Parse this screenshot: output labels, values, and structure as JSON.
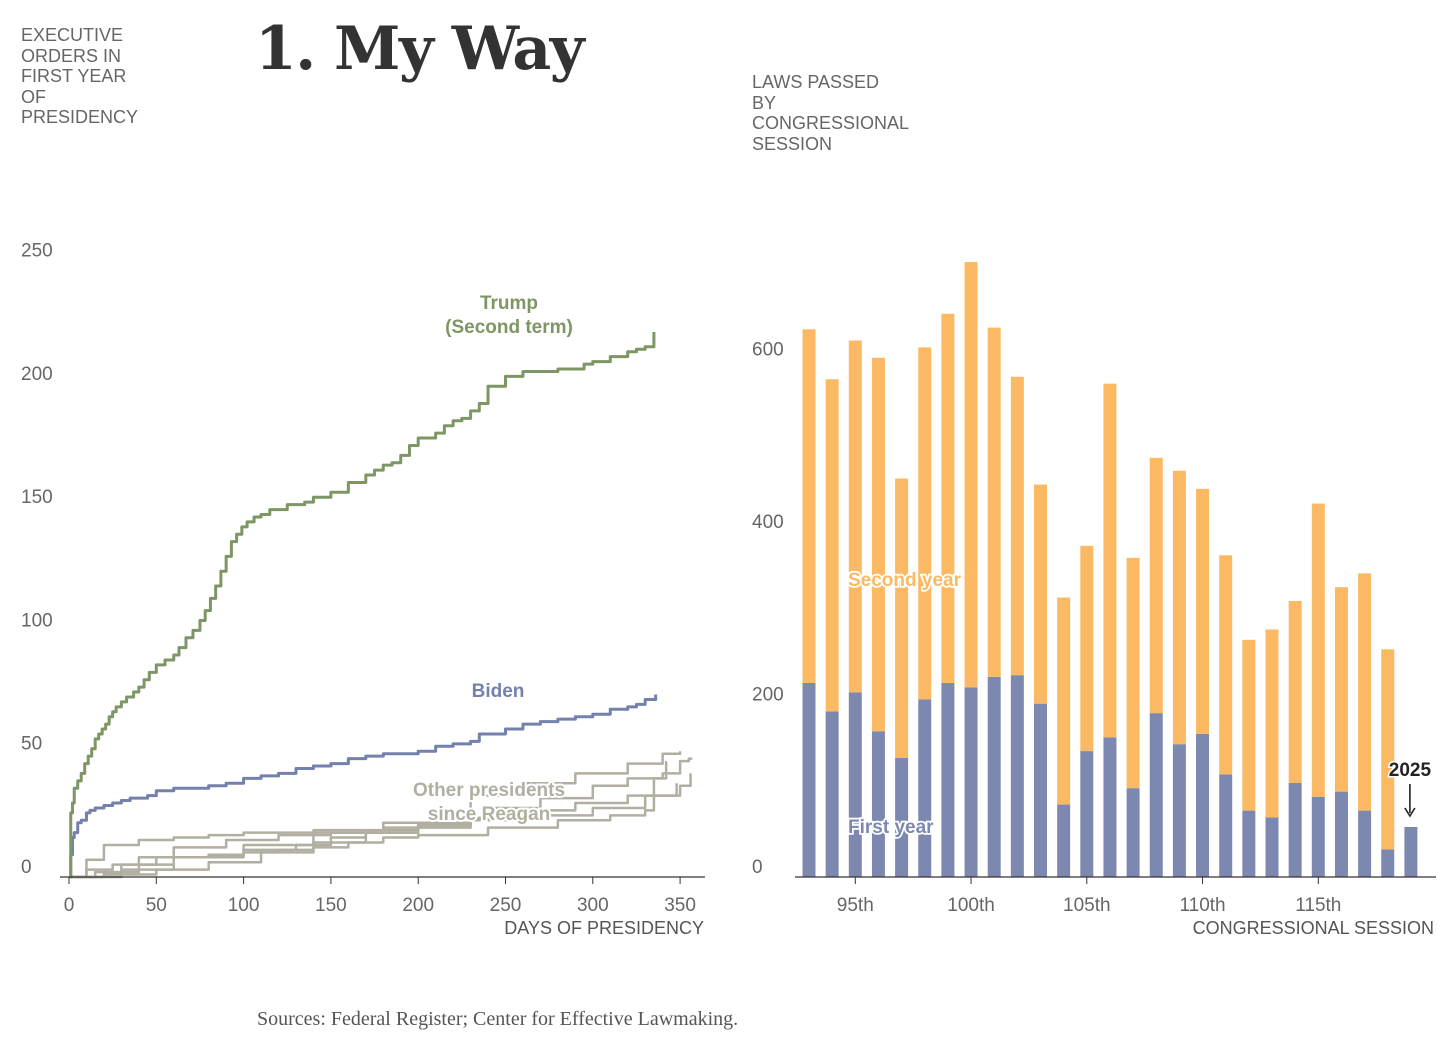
{
  "title": "1. My Way",
  "left_axis_title": [
    "EXECUTIVE",
    "ORDERS IN",
    "FIRST YEAR",
    "OF",
    "PRESIDENCY"
  ],
  "right_axis_title": [
    "LAWS PASSED",
    "BY",
    "CONGRESSIONAL",
    "SESSION"
  ],
  "sources": "Sources: Federal Register; Center for Effective Lawmaking.",
  "colors": {
    "trump": "#7d9663",
    "biden": "#7381ac",
    "others": "#b2aea1",
    "first_year": "#7d88b0",
    "second_year": "#fcb964",
    "axis": "#333333"
  },
  "chart_data": [
    {
      "type": "line",
      "title": "",
      "ylabel": "EXECUTIVE ORDERS IN FIRST YEAR OF PRESIDENCY",
      "xlabel": "DAYS OF PRESIDENCY",
      "xlim": [
        0,
        365
      ],
      "ylim": [
        0,
        255
      ],
      "xticks": [
        "0",
        "50",
        "100",
        "150",
        "200",
        "250",
        "300",
        "350"
      ],
      "yticks": [
        "0",
        "50",
        "100",
        "150",
        "200",
        "250"
      ],
      "series": [
        {
          "name": "Trump (Second term)",
          "label_lines": [
            "Trump",
            "(Second term)"
          ],
          "color_key": "trump",
          "x": [
            0,
            1,
            2,
            3,
            5,
            7,
            9,
            11,
            13,
            15,
            17,
            19,
            21,
            23,
            25,
            27,
            30,
            33,
            37,
            40,
            43,
            46,
            50,
            55,
            60,
            63,
            67,
            71,
            75,
            78,
            81,
            84,
            87,
            90,
            93,
            96,
            99,
            102,
            106,
            110,
            115,
            120,
            125,
            130,
            135,
            140,
            145,
            150,
            160,
            170,
            175,
            180,
            185,
            190,
            195,
            200,
            210,
            215,
            220,
            225,
            230,
            235,
            240,
            250,
            260,
            270,
            280,
            290,
            295,
            300,
            310,
            320,
            325,
            330,
            335
          ],
          "values": [
            0,
            26,
            30,
            36,
            39,
            42,
            46,
            49,
            52,
            56,
            58,
            60,
            62,
            65,
            67,
            69,
            71,
            73,
            75,
            77,
            80,
            83,
            86,
            88,
            90,
            93,
            97,
            100,
            104,
            108,
            113,
            118,
            124,
            130,
            136,
            139,
            142,
            144,
            146,
            147,
            149,
            149,
            151,
            151,
            152,
            154,
            154,
            156,
            160,
            163,
            165,
            167,
            168,
            171,
            175,
            178,
            180,
            183,
            185,
            186,
            189,
            192,
            199,
            203,
            205,
            205,
            206,
            206,
            208,
            209,
            211,
            213,
            214,
            215,
            221
          ]
        },
        {
          "name": "Biden",
          "label_lines": [
            "Biden"
          ],
          "color_key": "biden",
          "x": [
            0,
            1,
            2,
            3,
            5,
            7,
            10,
            12,
            15,
            20,
            25,
            30,
            35,
            40,
            45,
            50,
            60,
            70,
            80,
            90,
            100,
            110,
            120,
            130,
            140,
            150,
            160,
            170,
            180,
            190,
            200,
            210,
            220,
            230,
            235,
            240,
            250,
            260,
            270,
            280,
            290,
            300,
            310,
            320,
            325,
            330,
            336
          ],
          "values": [
            0,
            9,
            16,
            18,
            22,
            23,
            26,
            27,
            28,
            29,
            30,
            31,
            32,
            32,
            33,
            35,
            36,
            36,
            37,
            38,
            40,
            41,
            42,
            44,
            45,
            46,
            48,
            49,
            50,
            50,
            51,
            53,
            54,
            55,
            58,
            58,
            60,
            62,
            63,
            64,
            65,
            66,
            68,
            69,
            70,
            72,
            74
          ]
        },
        {
          "name": "Other presidents since Reagan",
          "label_lines": [
            "Other presidents",
            "since Reagan"
          ],
          "color_key": "others",
          "lines": [
            {
              "x": [
                0,
                10,
                20,
                40,
                60,
                80,
                100,
                120,
                140,
                160,
                180,
                200,
                207
              ],
              "values": [
                0,
                7,
                13,
                15,
                16,
                17,
                18,
                18,
                19,
                19,
                20,
                21,
                22
              ]
            },
            {
              "x": [
                0,
                15,
                30,
                50,
                80,
                100,
                130,
                150,
                170,
                200,
                230,
                260,
                300,
                330,
                348
              ],
              "values": [
                0,
                2,
                5,
                8,
                9,
                11,
                13,
                16,
                18,
                20,
                23,
                25,
                28,
                33,
                38
              ]
            },
            {
              "x": [
                0,
                10,
                25,
                40,
                60,
                90,
                120,
                150,
                180,
                200,
                230,
                260,
                290,
                320,
                340,
                350
              ],
              "values": [
                0,
                3,
                5,
                8,
                12,
                15,
                17,
                18,
                19,
                22,
                33,
                38,
                42,
                46,
                50,
                51
              ]
            },
            {
              "x": [
                0,
                20,
                40,
                60,
                80,
                100,
                120,
                140,
                160,
                180,
                200,
                240,
                280,
                310,
                330,
                335,
                342
              ],
              "values": [
                0,
                2,
                5,
                8,
                9,
                10,
                11,
                12,
                14,
                16,
                17,
                20,
                23,
                25,
                27,
                40,
                47
              ]
            },
            {
              "x": [
                0,
                30,
                60,
                100,
                140,
                180,
                210,
                240,
                270,
                300,
                320,
                340,
                350,
                355,
                357
              ],
              "values": [
                0,
                3,
                8,
                13,
                18,
                22,
                24,
                28,
                32,
                37,
                40,
                42,
                47,
                48,
                48
              ]
            },
            {
              "x": [
                0,
                20,
                50,
                80,
                110,
                140,
                170,
                200,
                230,
                260,
                290,
                320,
                350,
                356
              ],
              "values": [
                0,
                1,
                3,
                6,
                10,
                14,
                18,
                21,
                24,
                27,
                30,
                33,
                37,
                42
              ]
            }
          ]
        }
      ]
    },
    {
      "type": "bar",
      "title": "",
      "ylabel": "LAWS PASSED BY CONGRESSIONAL SESSION",
      "xlabel": "CONGRESSIONAL SESSION",
      "ylim": [
        0,
        720
      ],
      "yticks": [
        "0",
        "200",
        "400",
        "600"
      ],
      "xticks": [
        "95th",
        "100th",
        "105th",
        "110th",
        "115th"
      ],
      "categories": [
        93,
        94,
        95,
        96,
        97,
        98,
        99,
        100,
        101,
        102,
        103,
        104,
        105,
        106,
        107,
        108,
        109,
        110,
        111,
        112,
        113,
        114,
        115,
        116,
        117,
        118,
        119
      ],
      "series": [
        {
          "name": "First year",
          "color_key": "first_year",
          "values": [
            225,
            192,
            214,
            169,
            138,
            206,
            225,
            220,
            232,
            234,
            201,
            84,
            146,
            162,
            103,
            190,
            154,
            166,
            119,
            77,
            69,
            109,
            93,
            99,
            77,
            32,
            58
          ]
        },
        {
          "name": "Second year",
          "color_key": "second_year",
          "values": [
            410,
            385,
            408,
            433,
            324,
            408,
            428,
            493,
            405,
            346,
            254,
            240,
            238,
            410,
            267,
            296,
            317,
            284,
            254,
            198,
            218,
            211,
            340,
            237,
            275,
            232,
            0
          ]
        }
      ],
      "annotation": "2025"
    }
  ]
}
